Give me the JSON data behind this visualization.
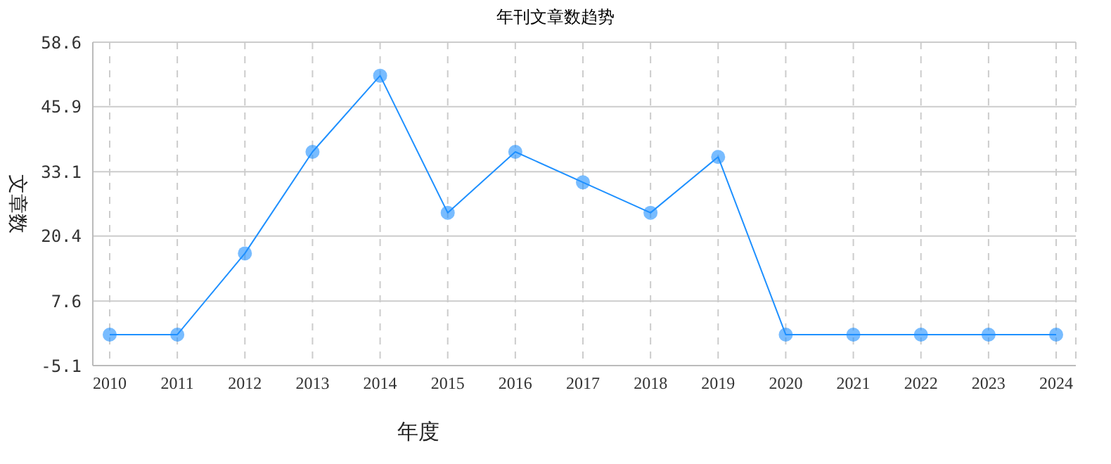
{
  "chart_data": {
    "type": "line",
    "title": "年刊文章数趋势",
    "xlabel": "年度",
    "ylabel": "文章数",
    "categories": [
      "2010",
      "2011",
      "2012",
      "2013",
      "2014",
      "2015",
      "2016",
      "2017",
      "2018",
      "2019",
      "2020",
      "2021",
      "2022",
      "2023",
      "2024"
    ],
    "series": [
      {
        "color": "#1e90ff",
        "values": [
          1,
          1,
          17,
          37,
          52,
          25,
          37,
          31,
          25,
          36,
          1,
          1,
          1,
          1,
          1
        ]
      }
    ],
    "ylim": [
      -5.1,
      58.6
    ],
    "yticks": [
      -5.1,
      7.6,
      20.4,
      33.1,
      45.9,
      58.6
    ],
    "grid": true,
    "marker": "circle",
    "line_style": "solid"
  }
}
